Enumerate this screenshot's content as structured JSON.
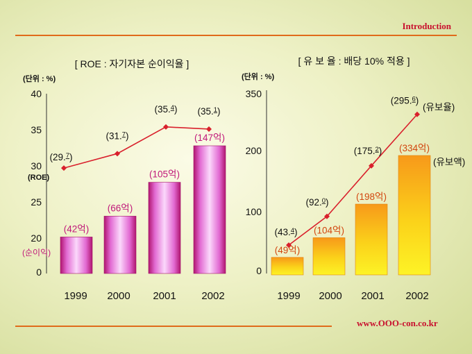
{
  "header": {
    "title": "Introduction"
  },
  "footer": {
    "url": "www.OOO-con.co.kr"
  },
  "colors": {
    "accent_red": "#c8102e",
    "rule_orange": "#e06a1a",
    "line_red": "#d9202c"
  },
  "chart_data": [
    {
      "type": "bar+line",
      "title": "[ ROE : 자기자본 순이익율 ]",
      "unit_label": "(단위 : %)",
      "categories": [
        "1999",
        "2000",
        "2001",
        "2002"
      ],
      "y_ticks": [
        "40",
        "35",
        "30",
        "25",
        "20",
        "0"
      ],
      "side_labels": {
        "line": "(ROE)",
        "bars": "(순이익)"
      },
      "bar_series": {
        "name": "순이익",
        "values": [
          42,
          66,
          105,
          147
        ],
        "labels": [
          "(42억)",
          "(66억)",
          "(105억)",
          "(147억)"
        ]
      },
      "line_series": {
        "name": "ROE",
        "values": [
          29.7,
          31.7,
          35.4,
          35.1
        ],
        "labels": [
          {
            "main": "(29.",
            "sup": "7",
            "end": ")"
          },
          {
            "main": "(31.",
            "sup": "7",
            "end": ")"
          },
          {
            "main": "(35.",
            "sup": "4",
            "end": ")"
          },
          {
            "main": "(35.",
            "sup": "1",
            "end": ")"
          }
        ]
      }
    },
    {
      "type": "bar+line",
      "title": "[ 유 보 율 : 배당 10% 적용 ]",
      "unit_label": "(단위 : %)",
      "categories": [
        "1999",
        "2000",
        "2001",
        "2002"
      ],
      "y_ticks": [
        "350",
        "200",
        "100",
        "0"
      ],
      "ylim": [
        0,
        350
      ],
      "side_labels": {
        "line": "(유보율)",
        "bars": "(유보액)"
      },
      "bar_series": {
        "name": "유보액",
        "values": [
          49,
          104,
          198,
          334
        ],
        "labels": [
          "(49억)",
          "(104억)",
          "(198억)",
          "(334억)"
        ]
      },
      "line_series": {
        "name": "유보율",
        "values": [
          43.4,
          92.0,
          175.2,
          295.6
        ],
        "labels": [
          {
            "main": "(43.",
            "sup": "4",
            "end": ")"
          },
          {
            "main": "(92.",
            "sup": "0",
            "end": ")"
          },
          {
            "main": "(175.",
            "sup": "2",
            "end": ")"
          },
          {
            "main": "(295.",
            "sup": "6",
            "end": ")"
          }
        ]
      }
    }
  ]
}
